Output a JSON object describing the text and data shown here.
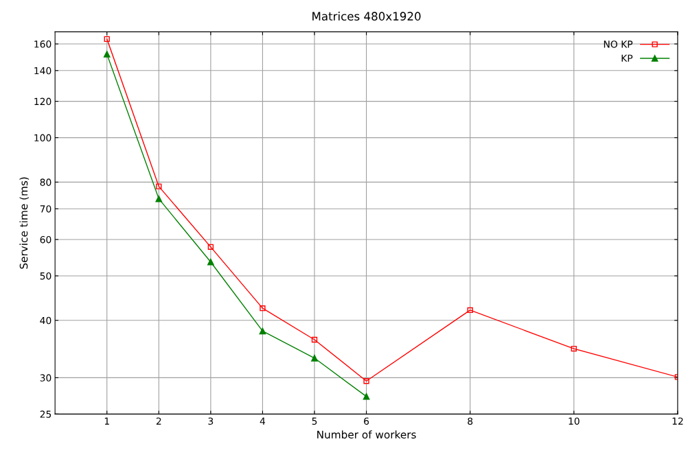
{
  "chart_data": {
    "type": "line",
    "title": "Matrices 480x1920",
    "xlabel": "Number of workers",
    "ylabel": "Service time (ms)",
    "log": "y",
    "grid": true,
    "legend": "top right",
    "xlim": [
      0,
      12
    ],
    "xticks": [
      1,
      2,
      3,
      4,
      5,
      6,
      8,
      10,
      12
    ],
    "ylim": [
      25,
      170
    ],
    "yticks": [
      25,
      30,
      40,
      50,
      60,
      70,
      80,
      100,
      120,
      140,
      160
    ],
    "series": [
      {
        "name": "NO KP",
        "color": "#ff0000",
        "marker": "square",
        "x": [
          1,
          2,
          3,
          4,
          5,
          6,
          8,
          10,
          12
        ],
        "values": [
          164,
          78.3,
          57.8,
          42.5,
          36.3,
          29.5,
          42.1,
          34.7,
          30.1
        ]
      },
      {
        "name": "KP",
        "color": "#008000",
        "marker": "triangle",
        "x": [
          1,
          2,
          3,
          4,
          5,
          6
        ],
        "values": [
          152,
          73.6,
          53.6,
          37.9,
          33.1,
          27.3
        ]
      }
    ]
  }
}
